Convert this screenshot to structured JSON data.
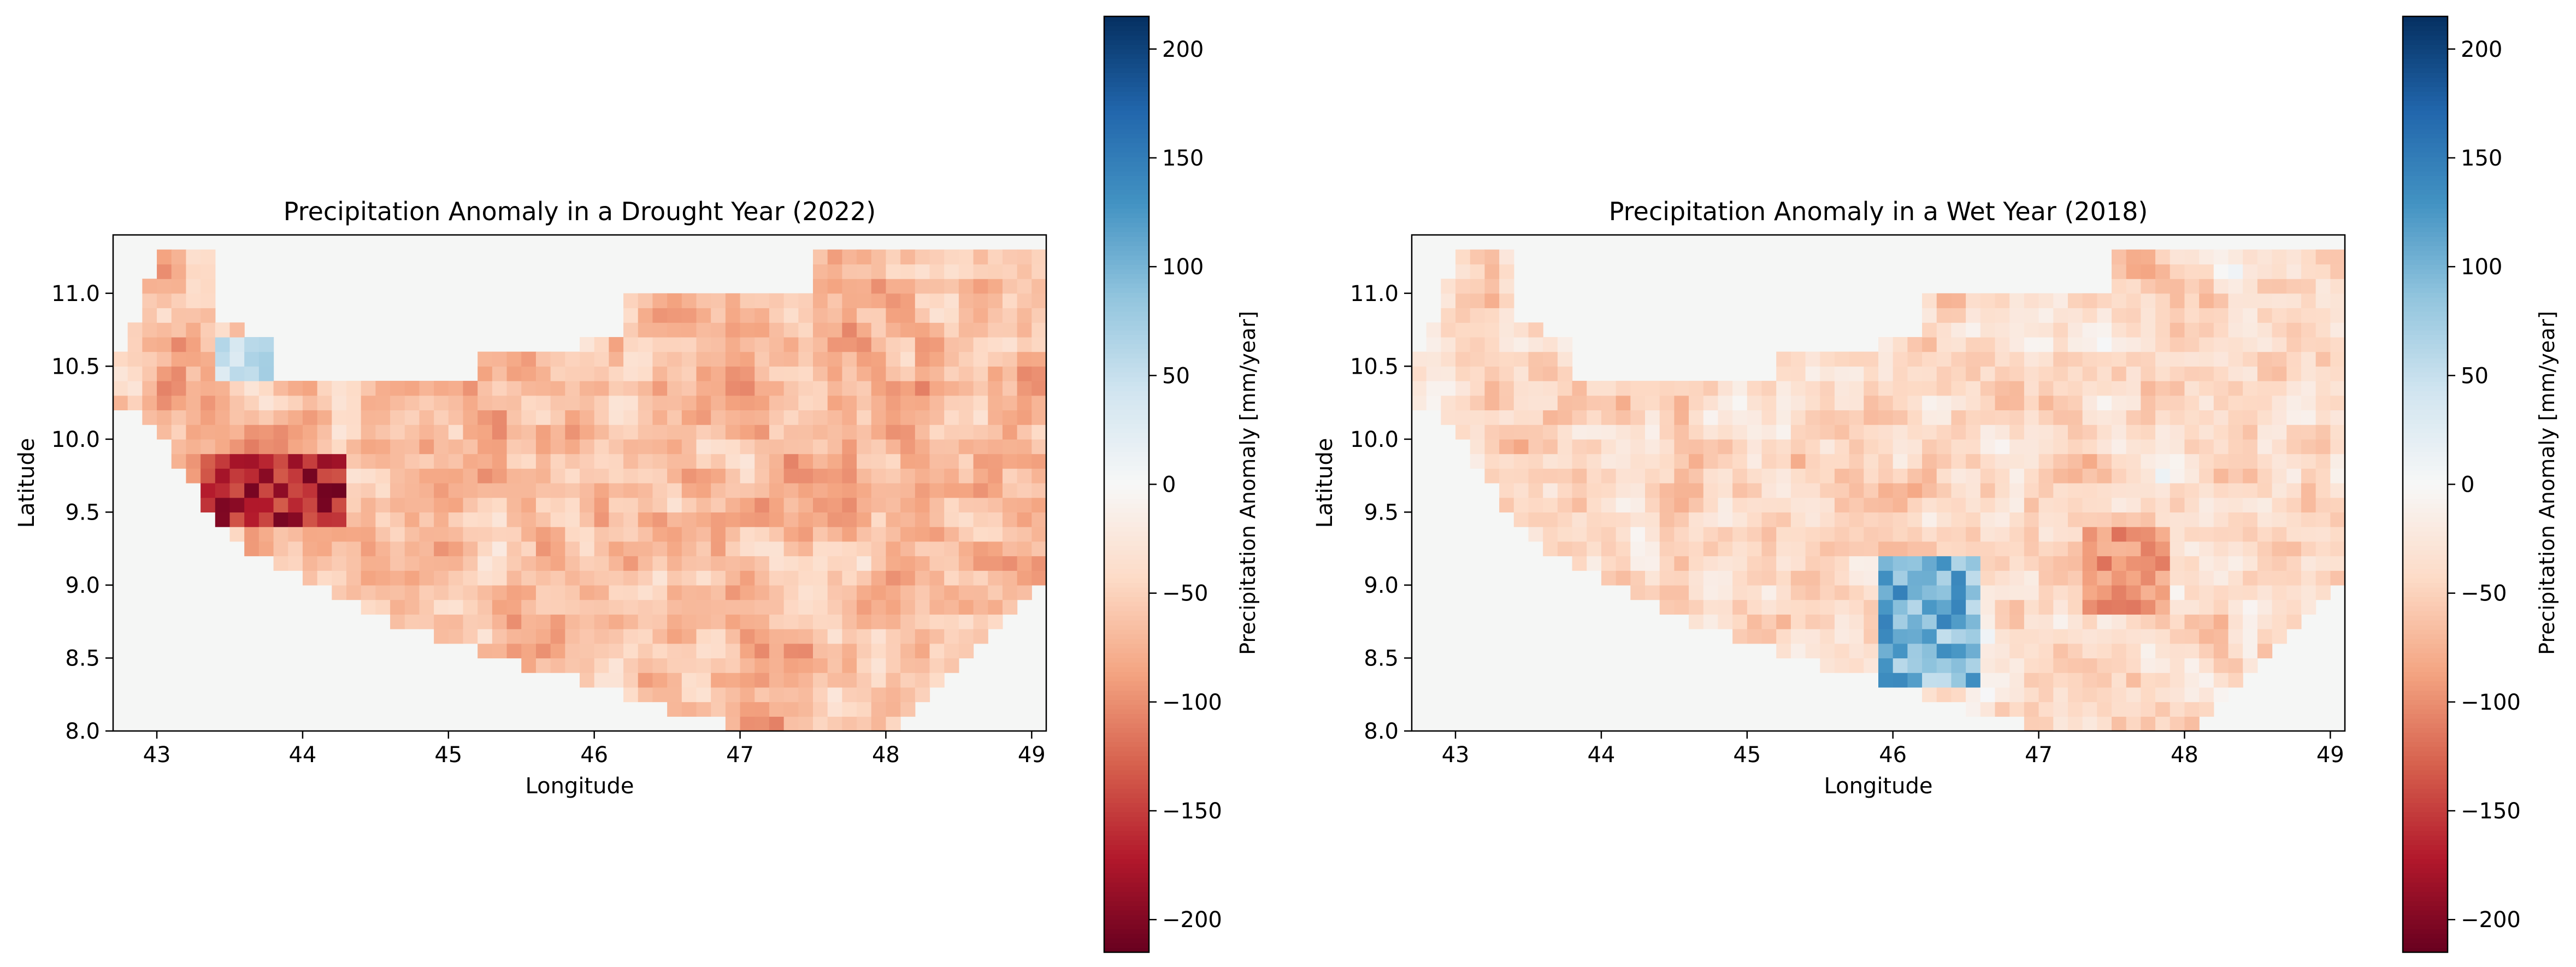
{
  "colors": {
    "negative_extreme": "#67001f",
    "negative_strong": "#b2182b",
    "negative_mid": "#d6604d",
    "negative_light": "#f4a582",
    "negative_faint": "#fddbc7",
    "zero": "#f7f7f7",
    "positive_faint": "#d1e5f0",
    "positive_light": "#92c5de",
    "positive_mid": "#4393c3",
    "positive_strong": "#2166ac",
    "positive_extreme": "#053061",
    "nodata": "#f5f6f5"
  },
  "chart_data": [
    {
      "type": "heatmap",
      "title": "Precipitation Anomaly in a Drought Year (2022)",
      "xlabel": "Longitude",
      "ylabel": "Latitude",
      "xlim": [
        42.7,
        49.1
      ],
      "ylim": [
        8.0,
        11.4
      ],
      "xticks": [
        43,
        44,
        45,
        46,
        47,
        48,
        49
      ],
      "yticks": [
        8.0,
        8.5,
        9.0,
        9.5,
        10.0,
        10.5,
        11.0
      ],
      "colorbar": {
        "label": "Precipitation Anomaly [mm/year]",
        "vmin": -215,
        "vmax": 215,
        "ticks": [
          -200,
          -150,
          -100,
          -50,
          0,
          50,
          100,
          150,
          200
        ],
        "tick_labels": [
          "−200",
          "−150",
          "−100",
          "−50",
          "0",
          "50",
          "100",
          "150",
          "200"
        ],
        "colormap": "RdBu"
      },
      "region_summary": {
        "typical_anomaly": -65,
        "min_anomaly": -215,
        "max_anomaly": 75,
        "wettest_area": {
          "lon": [
            43.4,
            44.0
          ],
          "lat": [
            10.4,
            10.7
          ]
        },
        "driest_area": {
          "lon": [
            43.3,
            44.3
          ],
          "lat": [
            9.4,
            9.9
          ]
        }
      }
    },
    {
      "type": "heatmap",
      "title": "Precipitation Anomaly in a Wet Year (2018)",
      "xlabel": "Longitude",
      "ylabel": "Latitude",
      "xlim": [
        42.7,
        49.1
      ],
      "ylim": [
        8.0,
        11.4
      ],
      "xticks": [
        43,
        44,
        45,
        46,
        47,
        48,
        49
      ],
      "yticks": [
        8.0,
        8.5,
        9.0,
        9.5,
        10.0,
        10.5,
        11.0
      ],
      "colorbar": {
        "label": "Precipitation Anomaly [mm/year]",
        "vmin": -215,
        "vmax": 215,
        "ticks": [
          -200,
          -150,
          -100,
          -50,
          0,
          50,
          100,
          150,
          200
        ],
        "tick_labels": [
          "−200",
          "−150",
          "−100",
          "−50",
          "0",
          "50",
          "100",
          "150",
          "200"
        ],
        "colormap": "RdBu"
      },
      "region_summary": {
        "typical_anomaly": -40,
        "min_anomaly": -120,
        "max_anomaly": 150,
        "wettest_area": {
          "lon": [
            45.9,
            46.6
          ],
          "lat": [
            8.3,
            9.2
          ]
        },
        "driest_area": {
          "lon": [
            47.3,
            47.9
          ],
          "lat": [
            8.8,
            9.4
          ]
        }
      }
    }
  ]
}
